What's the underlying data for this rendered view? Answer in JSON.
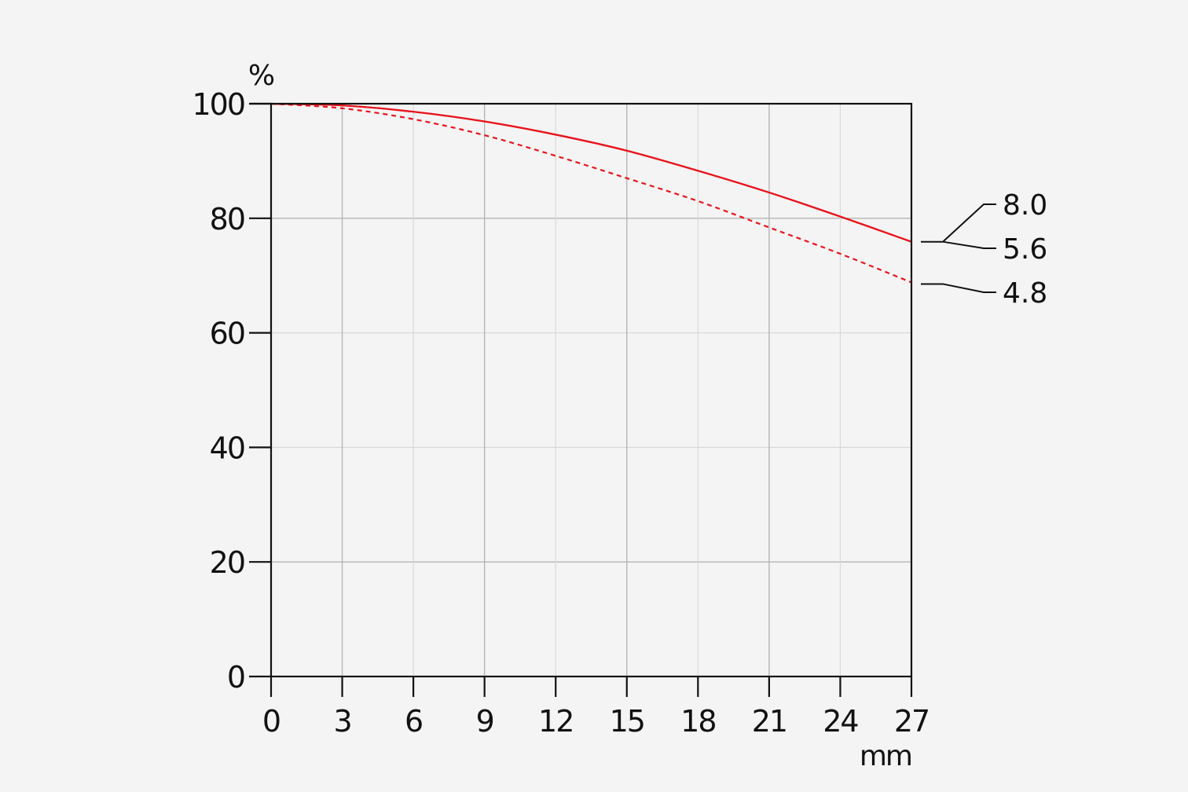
{
  "chart_data": {
    "type": "line",
    "ylabel": "%",
    "xlabel": "mm",
    "xlim": [
      0,
      27
    ],
    "ylim": [
      0,
      100
    ],
    "x_ticks": [
      "0",
      "3",
      "6",
      "9",
      "12",
      "15",
      "18",
      "21",
      "24",
      "27"
    ],
    "y_ticks": [
      "0",
      "20",
      "40",
      "60",
      "80",
      "100"
    ],
    "grid": true,
    "series": [
      {
        "name": "8.0",
        "style": "solid",
        "color": "#e8141c",
        "x": [
          0,
          3,
          6,
          9,
          12,
          15,
          18,
          21,
          24,
          27
        ],
        "y": [
          100,
          99.7,
          98.6,
          96.9,
          94.6,
          91.8,
          88.3,
          84.5,
          80.3,
          75.9
        ]
      },
      {
        "name": "5.6",
        "style": "solid",
        "color": "#e8141c",
        "x": [
          0,
          3,
          6,
          9,
          12,
          15,
          18,
          21,
          24,
          27
        ],
        "y": [
          100,
          99.7,
          98.6,
          96.9,
          94.6,
          91.8,
          88.3,
          84.5,
          80.3,
          75.9
        ]
      },
      {
        "name": "4.8",
        "style": "dashed",
        "color": "#e8141c",
        "x": [
          0,
          3,
          6,
          9,
          12,
          15,
          18,
          21,
          24,
          27
        ],
        "y": [
          100,
          99.2,
          97.3,
          94.5,
          90.9,
          87.0,
          83.0,
          78.4,
          73.8,
          68.8
        ]
      }
    ],
    "legend": [
      "8.0",
      "5.6",
      "4.8"
    ],
    "legend_placement": "right"
  }
}
